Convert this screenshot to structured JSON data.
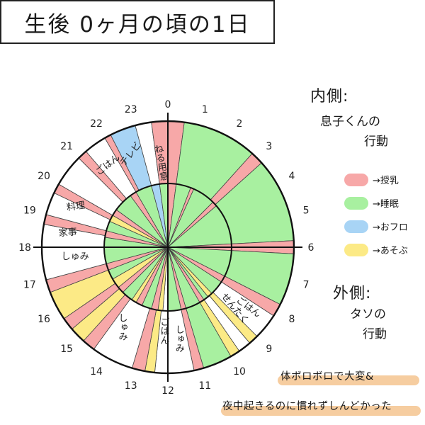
{
  "title": "生後 0ヶ月の頃の1日",
  "colors": {
    "feeding": "#f7a8a8",
    "sleep": "#a8f0a0",
    "bath": "#a8d4f5",
    "play": "#fcea86",
    "white": "#ffffff",
    "line": "#1a1a1a",
    "highlight": "#f5c48f"
  },
  "hours": [
    "0",
    "1",
    "2",
    "3",
    "4",
    "5",
    "6",
    "7",
    "8",
    "9",
    "10",
    "11",
    "12",
    "13",
    "14",
    "15",
    "16",
    "17",
    "18",
    "19",
    "20",
    "21",
    "22",
    "23"
  ],
  "inner_section": {
    "heading": "内側:",
    "subtitle_line1": "息子くんの",
    "subtitle_line2": "行動",
    "legend": [
      {
        "key": "feeding",
        "label": "→授乳"
      },
      {
        "key": "sleep",
        "label": "→睡眠"
      },
      {
        "key": "bath",
        "label": "→おフロ"
      },
      {
        "key": "play",
        "label": "→あそぶ"
      }
    ]
  },
  "outer_section": {
    "heading": "外側:",
    "subtitle_line1": "タソの",
    "subtitle_line2": "行動"
  },
  "outer_labels": {
    "neru_youi": "ねる用意",
    "terebi": "テレビ",
    "gohan_evening": "ごはん",
    "ryouri": "料理",
    "kaji": "家事",
    "shumi_17": "しゅみ",
    "shumi_14": "しゅみ",
    "gohan_12": "ごはん",
    "shumi_11": "しゅみ",
    "gohan_9": "ごはん",
    "sentaku": "せんたく"
  },
  "bottom_notes": [
    "体ボロボロで大変&",
    "夜中起きるのに慣れずしんどかった"
  ],
  "inner_ring": [
    {
      "s": 0,
      "e": 0.5,
      "k": "feeding"
    },
    {
      "s": 0.5,
      "e": 1.4,
      "k": "sleep"
    },
    {
      "s": 1.4,
      "e": 1.6,
      "k": "feeding"
    },
    {
      "s": 1.6,
      "e": 3.0,
      "k": "sleep"
    },
    {
      "s": 3.0,
      "e": 3.3,
      "k": "feeding"
    },
    {
      "s": 3.3,
      "e": 5.8,
      "k": "sleep"
    },
    {
      "s": 5.8,
      "e": 6.2,
      "k": "feeding"
    },
    {
      "s": 6.2,
      "e": 7.8,
      "k": "sleep"
    },
    {
      "s": 7.8,
      "e": 8.2,
      "k": "feeding"
    },
    {
      "s": 8.2,
      "e": 9.1,
      "k": "sleep"
    },
    {
      "s": 9.1,
      "e": 9.4,
      "k": "play"
    },
    {
      "s": 9.4,
      "e": 9.7,
      "k": "sleep"
    },
    {
      "s": 9.7,
      "e": 10.0,
      "k": "feeding"
    },
    {
      "s": 10.0,
      "e": 10.9,
      "k": "sleep"
    },
    {
      "s": 10.9,
      "e": 11.2,
      "k": "feeding"
    },
    {
      "s": 11.2,
      "e": 12.0,
      "k": "sleep"
    },
    {
      "s": 12.0,
      "e": 12.3,
      "k": "white"
    },
    {
      "s": 12.3,
      "e": 12.6,
      "k": "play"
    },
    {
      "s": 12.6,
      "e": 13.0,
      "k": "feeding"
    },
    {
      "s": 13.0,
      "e": 13.6,
      "k": "sleep"
    },
    {
      "s": 13.6,
      "e": 14.0,
      "k": "feeding"
    },
    {
      "s": 14.0,
      "e": 14.3,
      "k": "play"
    },
    {
      "s": 14.3,
      "e": 15.0,
      "k": "sleep"
    },
    {
      "s": 15.0,
      "e": 15.4,
      "k": "feeding"
    },
    {
      "s": 15.4,
      "e": 16.0,
      "k": "play"
    },
    {
      "s": 16.0,
      "e": 16.6,
      "k": "sleep"
    },
    {
      "s": 16.6,
      "e": 17.0,
      "k": "feeding"
    },
    {
      "s": 17.0,
      "e": 18.6,
      "k": "sleep"
    },
    {
      "s": 18.6,
      "e": 19.0,
      "k": "feeding"
    },
    {
      "s": 19.0,
      "e": 19.6,
      "k": "sleep"
    },
    {
      "s": 19.6,
      "e": 20.0,
      "k": "play"
    },
    {
      "s": 20.0,
      "e": 20.4,
      "k": "feeding"
    },
    {
      "s": 20.4,
      "e": 21.6,
      "k": "sleep"
    },
    {
      "s": 21.6,
      "e": 22.0,
      "k": "feeding"
    },
    {
      "s": 22.0,
      "e": 23.0,
      "k": "sleep"
    },
    {
      "s": 23.0,
      "e": 23.5,
      "k": "bath"
    },
    {
      "s": 23.5,
      "e": 24,
      "k": "sleep"
    }
  ],
  "outer_ring": [
    {
      "s": 0,
      "e": 0.5,
      "k": "feeding"
    },
    {
      "s": 0.5,
      "e": 2.8,
      "k": "sleep"
    },
    {
      "s": 2.8,
      "e": 3.2,
      "k": "feeding"
    },
    {
      "s": 3.2,
      "e": 5.8,
      "k": "sleep"
    },
    {
      "s": 5.8,
      "e": 6.2,
      "k": "feeding"
    },
    {
      "s": 6.2,
      "e": 7.8,
      "k": "sleep"
    },
    {
      "s": 7.8,
      "e": 8.2,
      "k": "feeding"
    },
    {
      "s": 8.2,
      "e": 9.0,
      "k": "white"
    },
    {
      "s": 9.0,
      "e": 9.3,
      "k": "play"
    },
    {
      "s": 9.3,
      "e": 9.7,
      "k": "white"
    },
    {
      "s": 9.7,
      "e": 10.0,
      "k": "play"
    },
    {
      "s": 10.0,
      "e": 10.9,
      "k": "sleep"
    },
    {
      "s": 10.9,
      "e": 11.2,
      "k": "feeding"
    },
    {
      "s": 11.2,
      "e": 12.0,
      "k": "white"
    },
    {
      "s": 12.0,
      "e": 12.4,
      "k": "white"
    },
    {
      "s": 12.4,
      "e": 12.7,
      "k": "play"
    },
    {
      "s": 12.7,
      "e": 13.1,
      "k": "feeding"
    },
    {
      "s": 13.1,
      "e": 14.4,
      "k": "white"
    },
    {
      "s": 14.4,
      "e": 14.8,
      "k": "feeding"
    },
    {
      "s": 14.8,
      "e": 15.3,
      "k": "play"
    },
    {
      "s": 15.3,
      "e": 15.7,
      "k": "feeding"
    },
    {
      "s": 15.7,
      "e": 16.6,
      "k": "play"
    },
    {
      "s": 16.6,
      "e": 17.0,
      "k": "feeding"
    },
    {
      "s": 17.0,
      "e": 18.0,
      "k": "white"
    },
    {
      "s": 18.0,
      "e": 18.7,
      "k": "white"
    },
    {
      "s": 18.7,
      "e": 19.0,
      "k": "feeding"
    },
    {
      "s": 19.0,
      "e": 19.7,
      "k": "white"
    },
    {
      "s": 19.7,
      "e": 20.0,
      "k": "feeding"
    },
    {
      "s": 20.0,
      "e": 21.0,
      "k": "white"
    },
    {
      "s": 21.0,
      "e": 21.3,
      "k": "feeding"
    },
    {
      "s": 21.3,
      "e": 22.0,
      "k": "white"
    },
    {
      "s": 22.0,
      "e": 22.2,
      "k": "feeding"
    },
    {
      "s": 22.2,
      "e": 23.0,
      "k": "bath"
    },
    {
      "s": 23.0,
      "e": 23.5,
      "k": "white"
    },
    {
      "s": 23.5,
      "e": 24,
      "k": "feeding"
    }
  ]
}
